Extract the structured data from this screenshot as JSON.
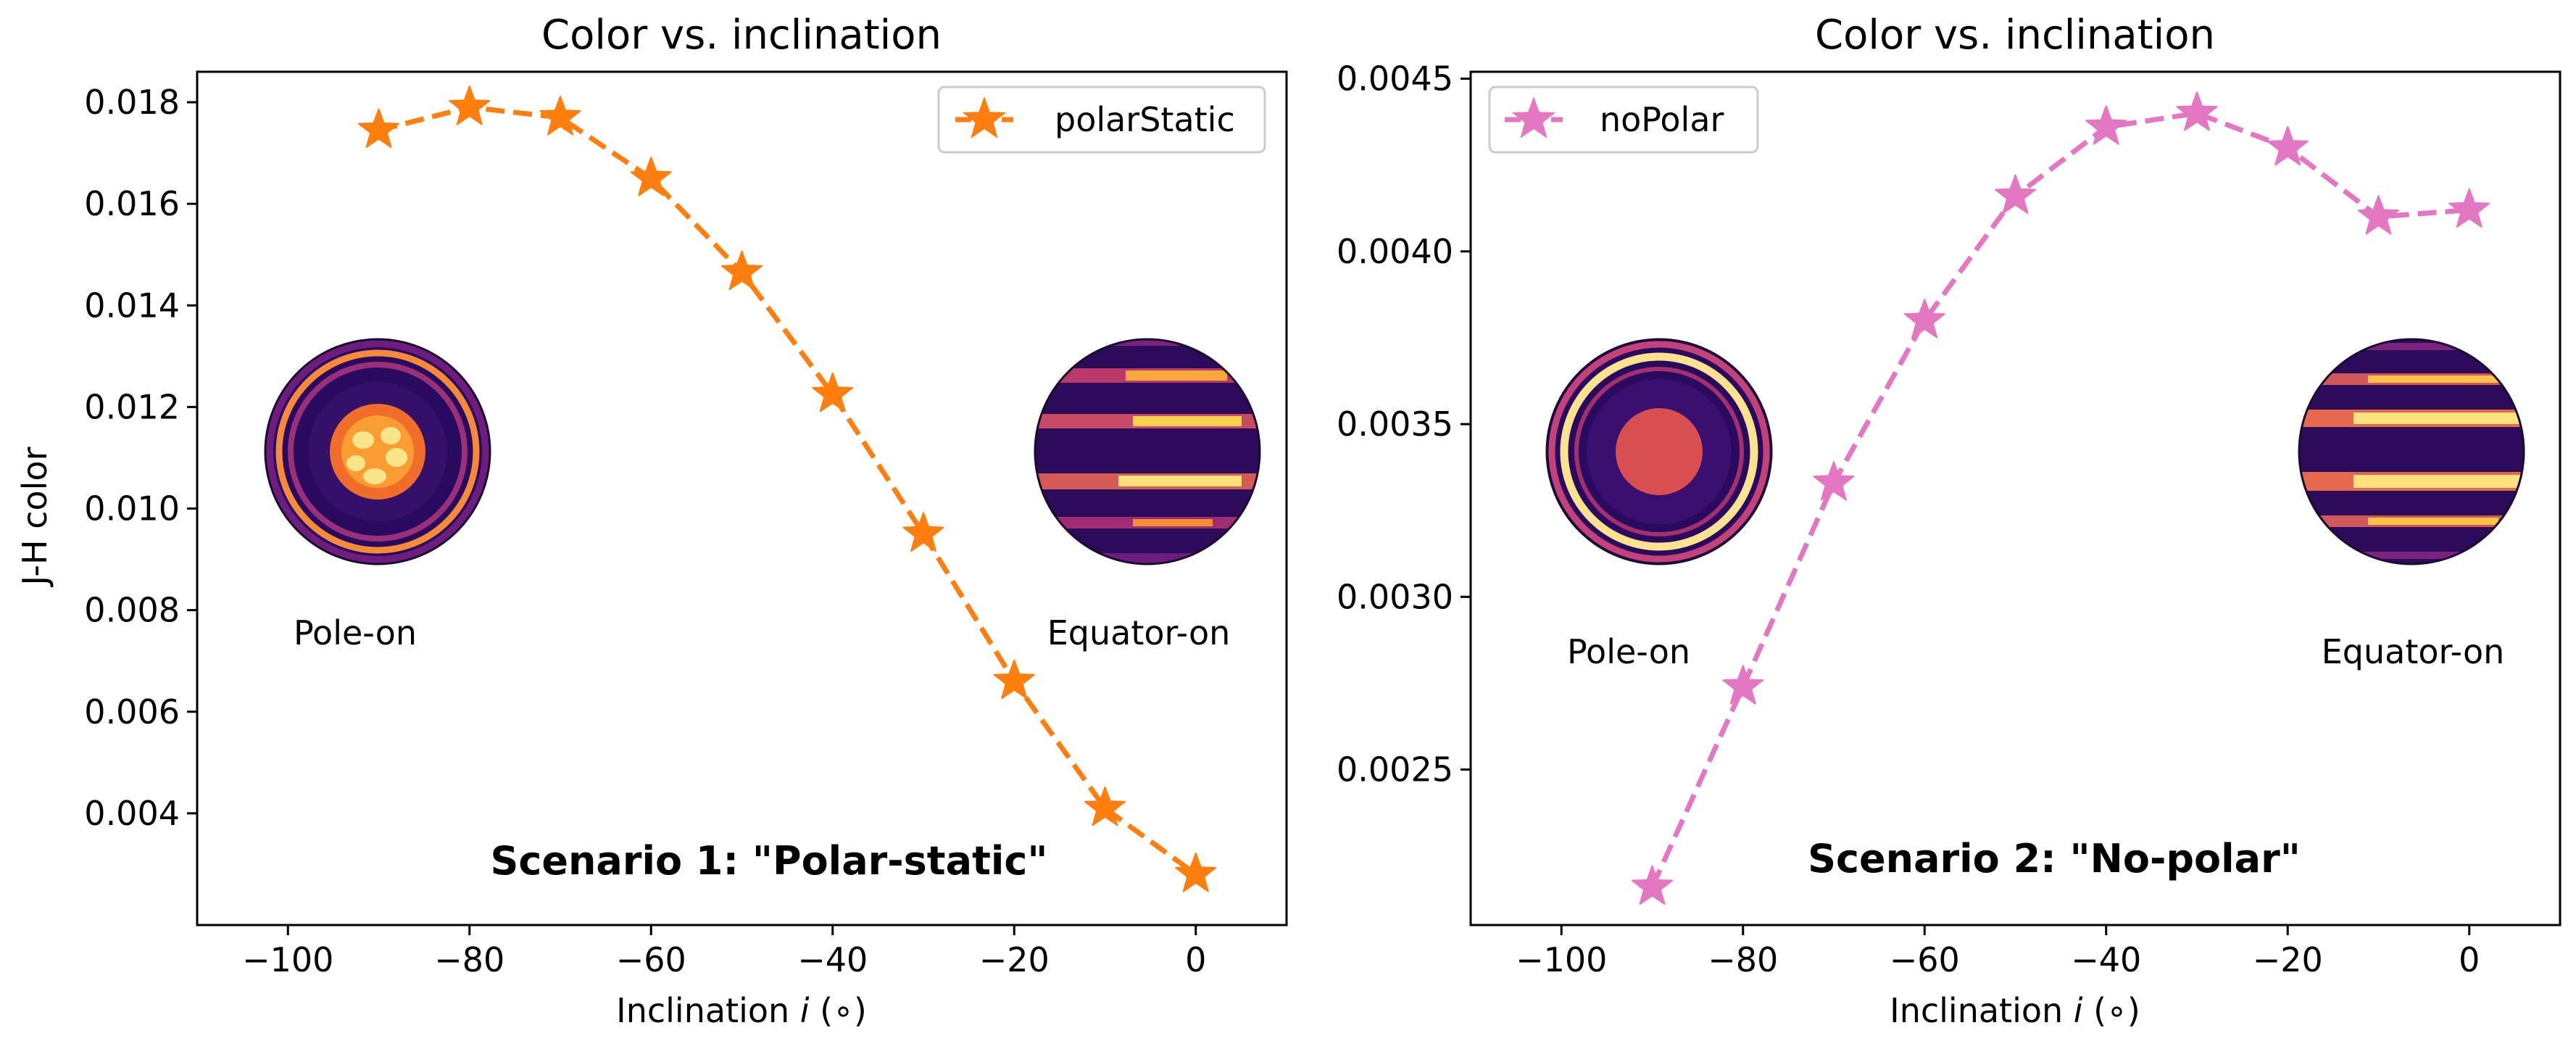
{
  "chart_data": [
    {
      "type": "line",
      "title": "Color vs. inclination",
      "xlabel": "Inclination i (∘)",
      "ylabel": "J-H color",
      "xlim": [
        -110,
        10
      ],
      "ylim": [
        0.0018,
        0.0186
      ],
      "xticks": [
        -100,
        -80,
        -60,
        -40,
        -20,
        0
      ],
      "xtick_labels": [
        "−100",
        "−80",
        "−60",
        "−40",
        "−20",
        "0"
      ],
      "yticks": [
        0.004,
        0.006,
        0.008,
        0.01,
        0.012,
        0.014,
        0.016,
        0.018
      ],
      "ytick_labels": [
        "0.004",
        "0.006",
        "0.008",
        "0.010",
        "0.012",
        "0.014",
        "0.016",
        "0.018"
      ],
      "grid": false,
      "legend_position": "top-right",
      "series": [
        {
          "name": "polarStatic",
          "color": "#ff7f0e",
          "marker": "star",
          "linestyle": "dashed",
          "x": [
            -90,
            -80,
            -70,
            -60,
            -50,
            -40,
            -30,
            -20,
            -10,
            0
          ],
          "y": [
            0.01745,
            0.0179,
            0.0177,
            0.0165,
            0.01465,
            0.01225,
            0.0095,
            0.0066,
            0.0041,
            0.0028
          ]
        }
      ],
      "annotations": [
        {
          "text": "Pole-on",
          "x": -92,
          "y": 0.0076
        },
        {
          "text": "Equator-on",
          "x": -6,
          "y": 0.0076
        },
        {
          "text": "Scenario 1: \"Polar-static\"",
          "x": -50,
          "y": 0.0032,
          "bold": true
        }
      ],
      "insets": [
        {
          "name": "pole-on-thumbnail",
          "view": "pole-on",
          "x": -90,
          "y": 0.0112
        },
        {
          "name": "equator-on-thumbnail",
          "view": "equator-on",
          "x": -5,
          "y": 0.0112
        }
      ]
    },
    {
      "type": "line",
      "title": "Color vs. inclination",
      "xlabel": "Inclination i (∘)",
      "ylabel": "",
      "xlim": [
        -110,
        10
      ],
      "ylim": [
        0.00205,
        0.00452
      ],
      "xticks": [
        -100,
        -80,
        -60,
        -40,
        -20,
        0
      ],
      "xtick_labels": [
        "−100",
        "−80",
        "−60",
        "−40",
        "−20",
        "0"
      ],
      "yticks": [
        0.0025,
        0.003,
        0.0035,
        0.004,
        0.0045
      ],
      "ytick_labels": [
        "0.0025",
        "0.0030",
        "0.0035",
        "0.0040",
        "0.0045"
      ],
      "grid": false,
      "legend_position": "top-left",
      "series": [
        {
          "name": "noPolar",
          "color": "#e377c2",
          "marker": "star",
          "linestyle": "dashed",
          "x": [
            -90,
            -80,
            -70,
            -60,
            -50,
            -40,
            -30,
            -20,
            -10,
            0
          ],
          "y": [
            0.00216,
            0.00274,
            0.00333,
            0.0038,
            0.00416,
            0.00436,
            0.0044,
            0.0043,
            0.0041,
            0.00412
          ]
        }
      ],
      "annotations": [
        {
          "text": "Pole-on",
          "x": -90,
          "y": 0.00282
        },
        {
          "text": "Equator-on",
          "x": -6,
          "y": 0.00282
        },
        {
          "text": "Scenario 2: \"No-polar\"",
          "x": -45,
          "y": 0.00222,
          "bold": true
        }
      ],
      "insets": [
        {
          "name": "pole-on-thumbnail",
          "view": "pole-on",
          "x": -90,
          "y": 0.0034
        },
        {
          "name": "equator-on-thumbnail",
          "view": "equator-on",
          "x": -6,
          "y": 0.0034
        }
      ]
    }
  ]
}
